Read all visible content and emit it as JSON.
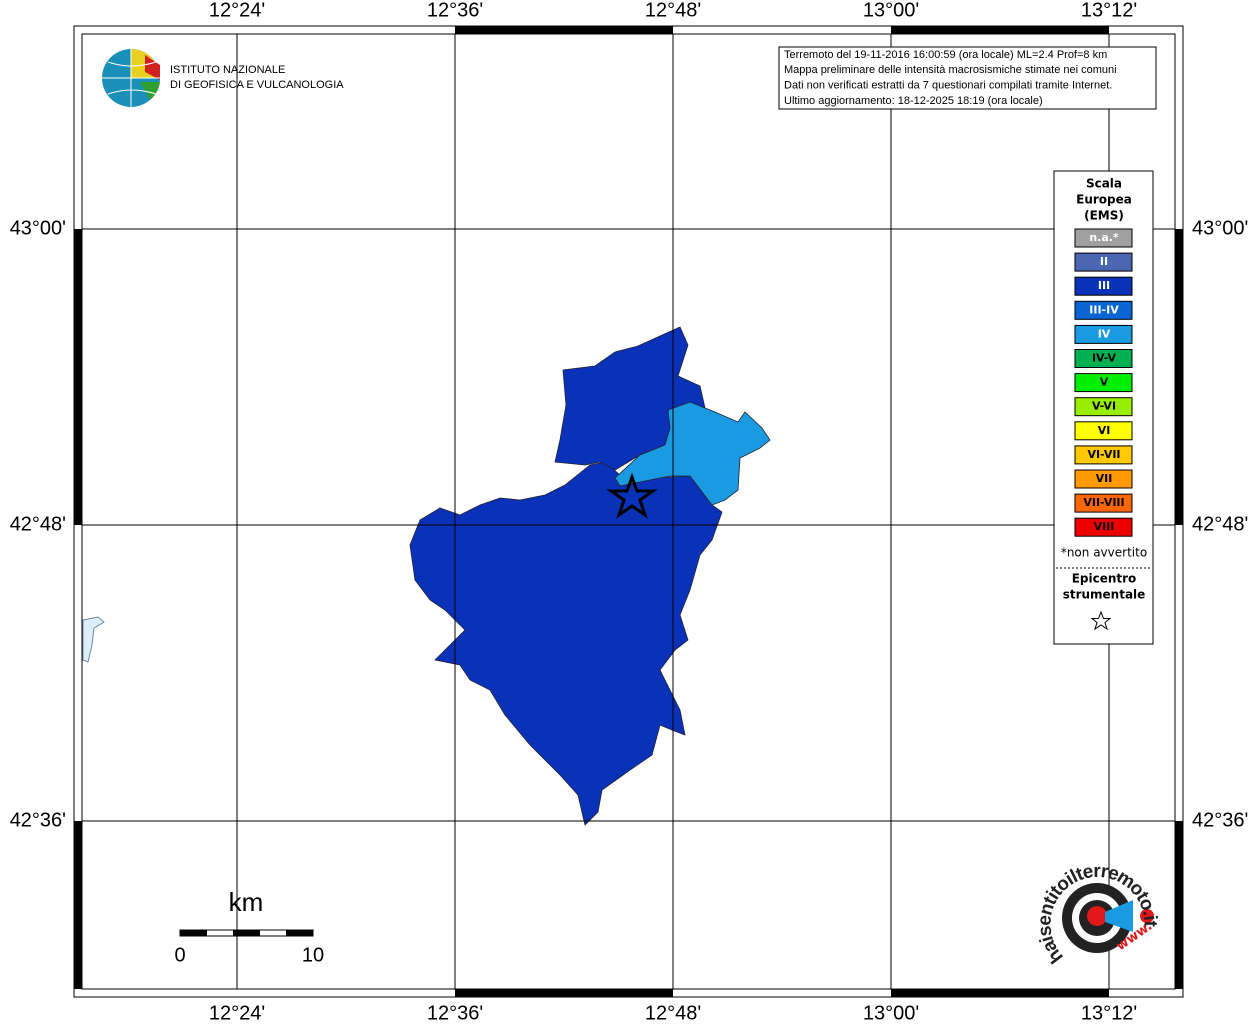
{
  "map": {
    "lon_labels": [
      "12°24'",
      "12°36'",
      "12°48'",
      "13°00'",
      "13°12'"
    ],
    "lat_labels": [
      "43°00'",
      "42°48'",
      "42°36'"
    ]
  },
  "logo": {
    "line1": "ISTITUTO NAZIONALE",
    "line2": "DI GEOFISICA E VULCANOLOGIA"
  },
  "info": [
    "Terremoto del 19-11-2016 16:00:59 (ora locale) ML=2.4 Prof=8 km",
    "Mappa preliminare delle intensità macrosismiche stimate nei comuni",
    "Dati non verificati estratti da 7 questionari compilati tramite Internet.",
    "Ultimo aggiornamento: 18-12-2025 18:19 (ora locale)"
  ],
  "legend": {
    "title": [
      "Scala",
      "Europea",
      "(EMS)"
    ],
    "classes": [
      {
        "label": "n.a.*",
        "color": "#a0a0a0",
        "text_color": "#ffffff"
      },
      {
        "label": "II",
        "color": "#4a66b0",
        "text_color": "#ffffff"
      },
      {
        "label": "III",
        "color": "#0a32b8",
        "text_color": "#ffffff"
      },
      {
        "label": "III-IV",
        "color": "#0a64d2",
        "text_color": "#ffffff"
      },
      {
        "label": "IV",
        "color": "#1a9ae0",
        "text_color": "#ffffff"
      },
      {
        "label": "IV-V",
        "color": "#00b050",
        "text_color": "#000000"
      },
      {
        "label": "V",
        "color": "#00ee00",
        "text_color": "#000000"
      },
      {
        "label": "V-VI",
        "color": "#99ee00",
        "text_color": "#000000"
      },
      {
        "label": "VI",
        "color": "#ffff00",
        "text_color": "#000000"
      },
      {
        "label": "VI-VII",
        "color": "#ffc800",
        "text_color": "#000000"
      },
      {
        "label": "VII",
        "color": "#ff9900",
        "text_color": "#000000"
      },
      {
        "label": "VII-VIII",
        "color": "#ff6600",
        "text_color": "#000000"
      },
      {
        "label": "VIII",
        "color": "#ee0000",
        "text_color": "#000000"
      }
    ],
    "note": "*non avvertito",
    "epicenter": [
      "Epicentro",
      "strumentale"
    ]
  },
  "scale": {
    "unit": "km",
    "start": "0",
    "end": "10"
  },
  "badge": {
    "site": "haisentitoilterremoto.it",
    "prefix": "www."
  }
}
